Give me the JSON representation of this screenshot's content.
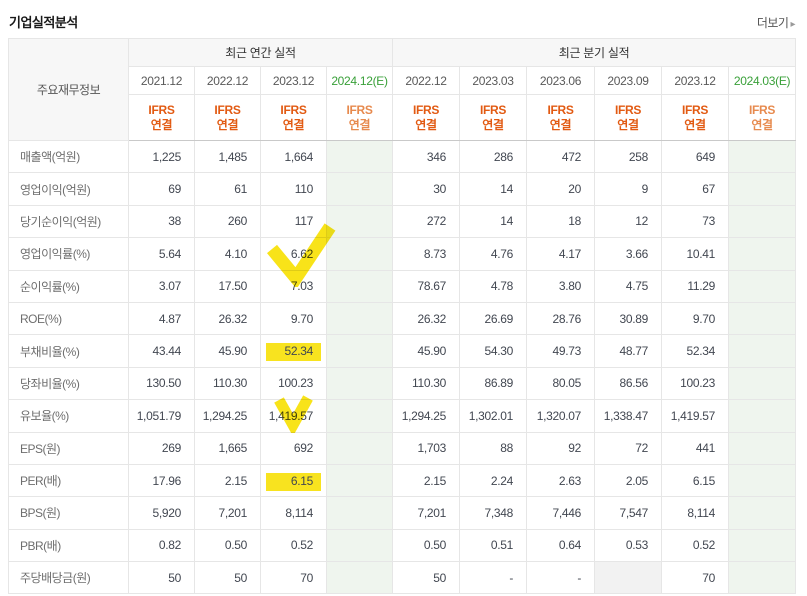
{
  "page": {
    "title": "기업실적분석",
    "more_label": "더보기",
    "more_arrow_icon": "chevron-right"
  },
  "colors": {
    "accent_orange": "#e25a12",
    "estimate_green_bg": "#eff5ee",
    "estimate_green_text": "#39a039",
    "highlighter_yellow": "#f8e000",
    "header_gray_bg": "#f7f7f7",
    "na_gray_bg": "#f2f2f2"
  },
  "table": {
    "corner_label": "주요재무정보",
    "groups": [
      {
        "label": "최근 연간 실적",
        "cols": 4
      },
      {
        "label": "최근 분기 실적",
        "cols": 6
      }
    ],
    "columns": [
      {
        "period": "2021.12",
        "standard": "IFRS",
        "scope": "연결",
        "estimate": false
      },
      {
        "period": "2022.12",
        "standard": "IFRS",
        "scope": "연결",
        "estimate": false
      },
      {
        "period": "2023.12",
        "standard": "IFRS",
        "scope": "연결",
        "estimate": false
      },
      {
        "period": "2024.12(E)",
        "standard": "IFRS",
        "scope": "연결",
        "estimate": true
      },
      {
        "period": "2022.12",
        "standard": "IFRS",
        "scope": "연결",
        "estimate": false
      },
      {
        "period": "2023.03",
        "standard": "IFRS",
        "scope": "연결",
        "estimate": false
      },
      {
        "period": "2023.06",
        "standard": "IFRS",
        "scope": "연결",
        "estimate": false
      },
      {
        "period": "2023.09",
        "standard": "IFRS",
        "scope": "연결",
        "estimate": false
      },
      {
        "period": "2023.12",
        "standard": "IFRS",
        "scope": "연결",
        "estimate": false
      },
      {
        "period": "2024.03(E)",
        "standard": "IFRS",
        "scope": "연결",
        "estimate": true
      }
    ],
    "rows": [
      {
        "label": "매출액(억원)",
        "values": [
          "1,225",
          "1,485",
          "1,664",
          "",
          "346",
          "286",
          "472",
          "258",
          "649",
          ""
        ]
      },
      {
        "label": "영업이익(억원)",
        "values": [
          "69",
          "61",
          "110",
          "",
          "30",
          "14",
          "20",
          "9",
          "67",
          ""
        ]
      },
      {
        "label": "당기순이익(억원)",
        "values": [
          "38",
          "260",
          "117",
          "",
          "272",
          "14",
          "18",
          "12",
          "73",
          ""
        ]
      },
      {
        "label": "영업이익률(%)",
        "values": [
          "5.64",
          "4.10",
          "6.62",
          "",
          "8.73",
          "4.76",
          "4.17",
          "3.66",
          "10.41",
          ""
        ]
      },
      {
        "label": "순이익률(%)",
        "values": [
          "3.07",
          "17.50",
          "7.03",
          "",
          "78.67",
          "4.78",
          "3.80",
          "4.75",
          "11.29",
          ""
        ]
      },
      {
        "label": "ROE(%)",
        "values": [
          "4.87",
          "26.32",
          "9.70",
          "",
          "26.32",
          "26.69",
          "28.76",
          "30.89",
          "9.70",
          ""
        ]
      },
      {
        "label": "부채비율(%)",
        "values": [
          "43.44",
          "45.90",
          "52.34",
          "",
          "45.90",
          "54.30",
          "49.73",
          "48.77",
          "52.34",
          ""
        ]
      },
      {
        "label": "당좌비율(%)",
        "values": [
          "130.50",
          "110.30",
          "100.23",
          "",
          "110.30",
          "86.89",
          "80.05",
          "86.56",
          "100.23",
          ""
        ]
      },
      {
        "label": "유보율(%)",
        "values": [
          "1,051.79",
          "1,294.25",
          "1,419.57",
          "",
          "1,294.25",
          "1,302.01",
          "1,320.07",
          "1,338.47",
          "1,419.57",
          ""
        ]
      },
      {
        "label": "EPS(원)",
        "values": [
          "269",
          "1,665",
          "692",
          "",
          "1,703",
          "88",
          "92",
          "72",
          "441",
          ""
        ]
      },
      {
        "label": "PER(배)",
        "values": [
          "17.96",
          "2.15",
          "6.15",
          "",
          "2.15",
          "2.24",
          "2.63",
          "2.05",
          "6.15",
          ""
        ]
      },
      {
        "label": "BPS(원)",
        "values": [
          "5,920",
          "7,201",
          "8,114",
          "",
          "7,201",
          "7,348",
          "7,446",
          "7,547",
          "8,114",
          ""
        ]
      },
      {
        "label": "PBR(배)",
        "values": [
          "0.82",
          "0.50",
          "0.52",
          "",
          "0.50",
          "0.51",
          "0.64",
          "0.53",
          "0.52",
          ""
        ]
      },
      {
        "label": "주당배당금(원)",
        "values": [
          "50",
          "50",
          "70",
          "",
          "50",
          "-",
          "-",
          "",
          "70",
          ""
        ]
      }
    ],
    "na_cells": [
      {
        "row": 13,
        "col": 7
      }
    ],
    "highlights": [
      {
        "row": 3,
        "col": 2,
        "type": "check-large",
        "value": "6.62"
      },
      {
        "row": 6,
        "col": 2,
        "type": "marker-bar",
        "value": "52.34"
      },
      {
        "row": 8,
        "col": 2,
        "type": "check-small",
        "value": "1,419.57"
      },
      {
        "row": 10,
        "col": 2,
        "type": "marker-bar",
        "value": "6.15"
      }
    ]
  }
}
